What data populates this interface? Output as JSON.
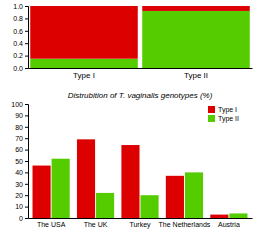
{
  "chart_data": [
    {
      "type": "bar",
      "stacked": true,
      "categories": [
        "Type I",
        "Type II"
      ],
      "series": [
        {
          "color": "#55cc00",
          "values": [
            0.15,
            0.92
          ]
        },
        {
          "color": "#dd0000",
          "values": [
            0.85,
            0.08
          ]
        }
      ],
      "ylim": [
        0.0,
        1.0
      ],
      "yticks": [
        {
          "value": 0,
          "label": "0.0"
        },
        0.2,
        0.4,
        0.6,
        0.8,
        {
          "value": 1,
          "label": "1.0"
        }
      ]
    },
    {
      "type": "bar",
      "title": "Distrubition of T. vaginalis genotypes (%)",
      "categories": [
        "The USA",
        "The UK",
        "Turkey",
        "The Netherlands",
        "Austria"
      ],
      "series": [
        {
          "name": "Type I",
          "color": "#dd0000",
          "values": [
            46,
            69,
            64,
            37,
            3
          ]
        },
        {
          "name": "Type II",
          "color": "#55cc00",
          "values": [
            52,
            22,
            20,
            40,
            4
          ]
        }
      ],
      "ylim": [
        0,
        100
      ],
      "yticks": [
        0,
        10,
        20,
        30,
        40,
        50,
        60,
        70,
        80,
        90,
        100
      ],
      "legend": "upper right"
    }
  ]
}
